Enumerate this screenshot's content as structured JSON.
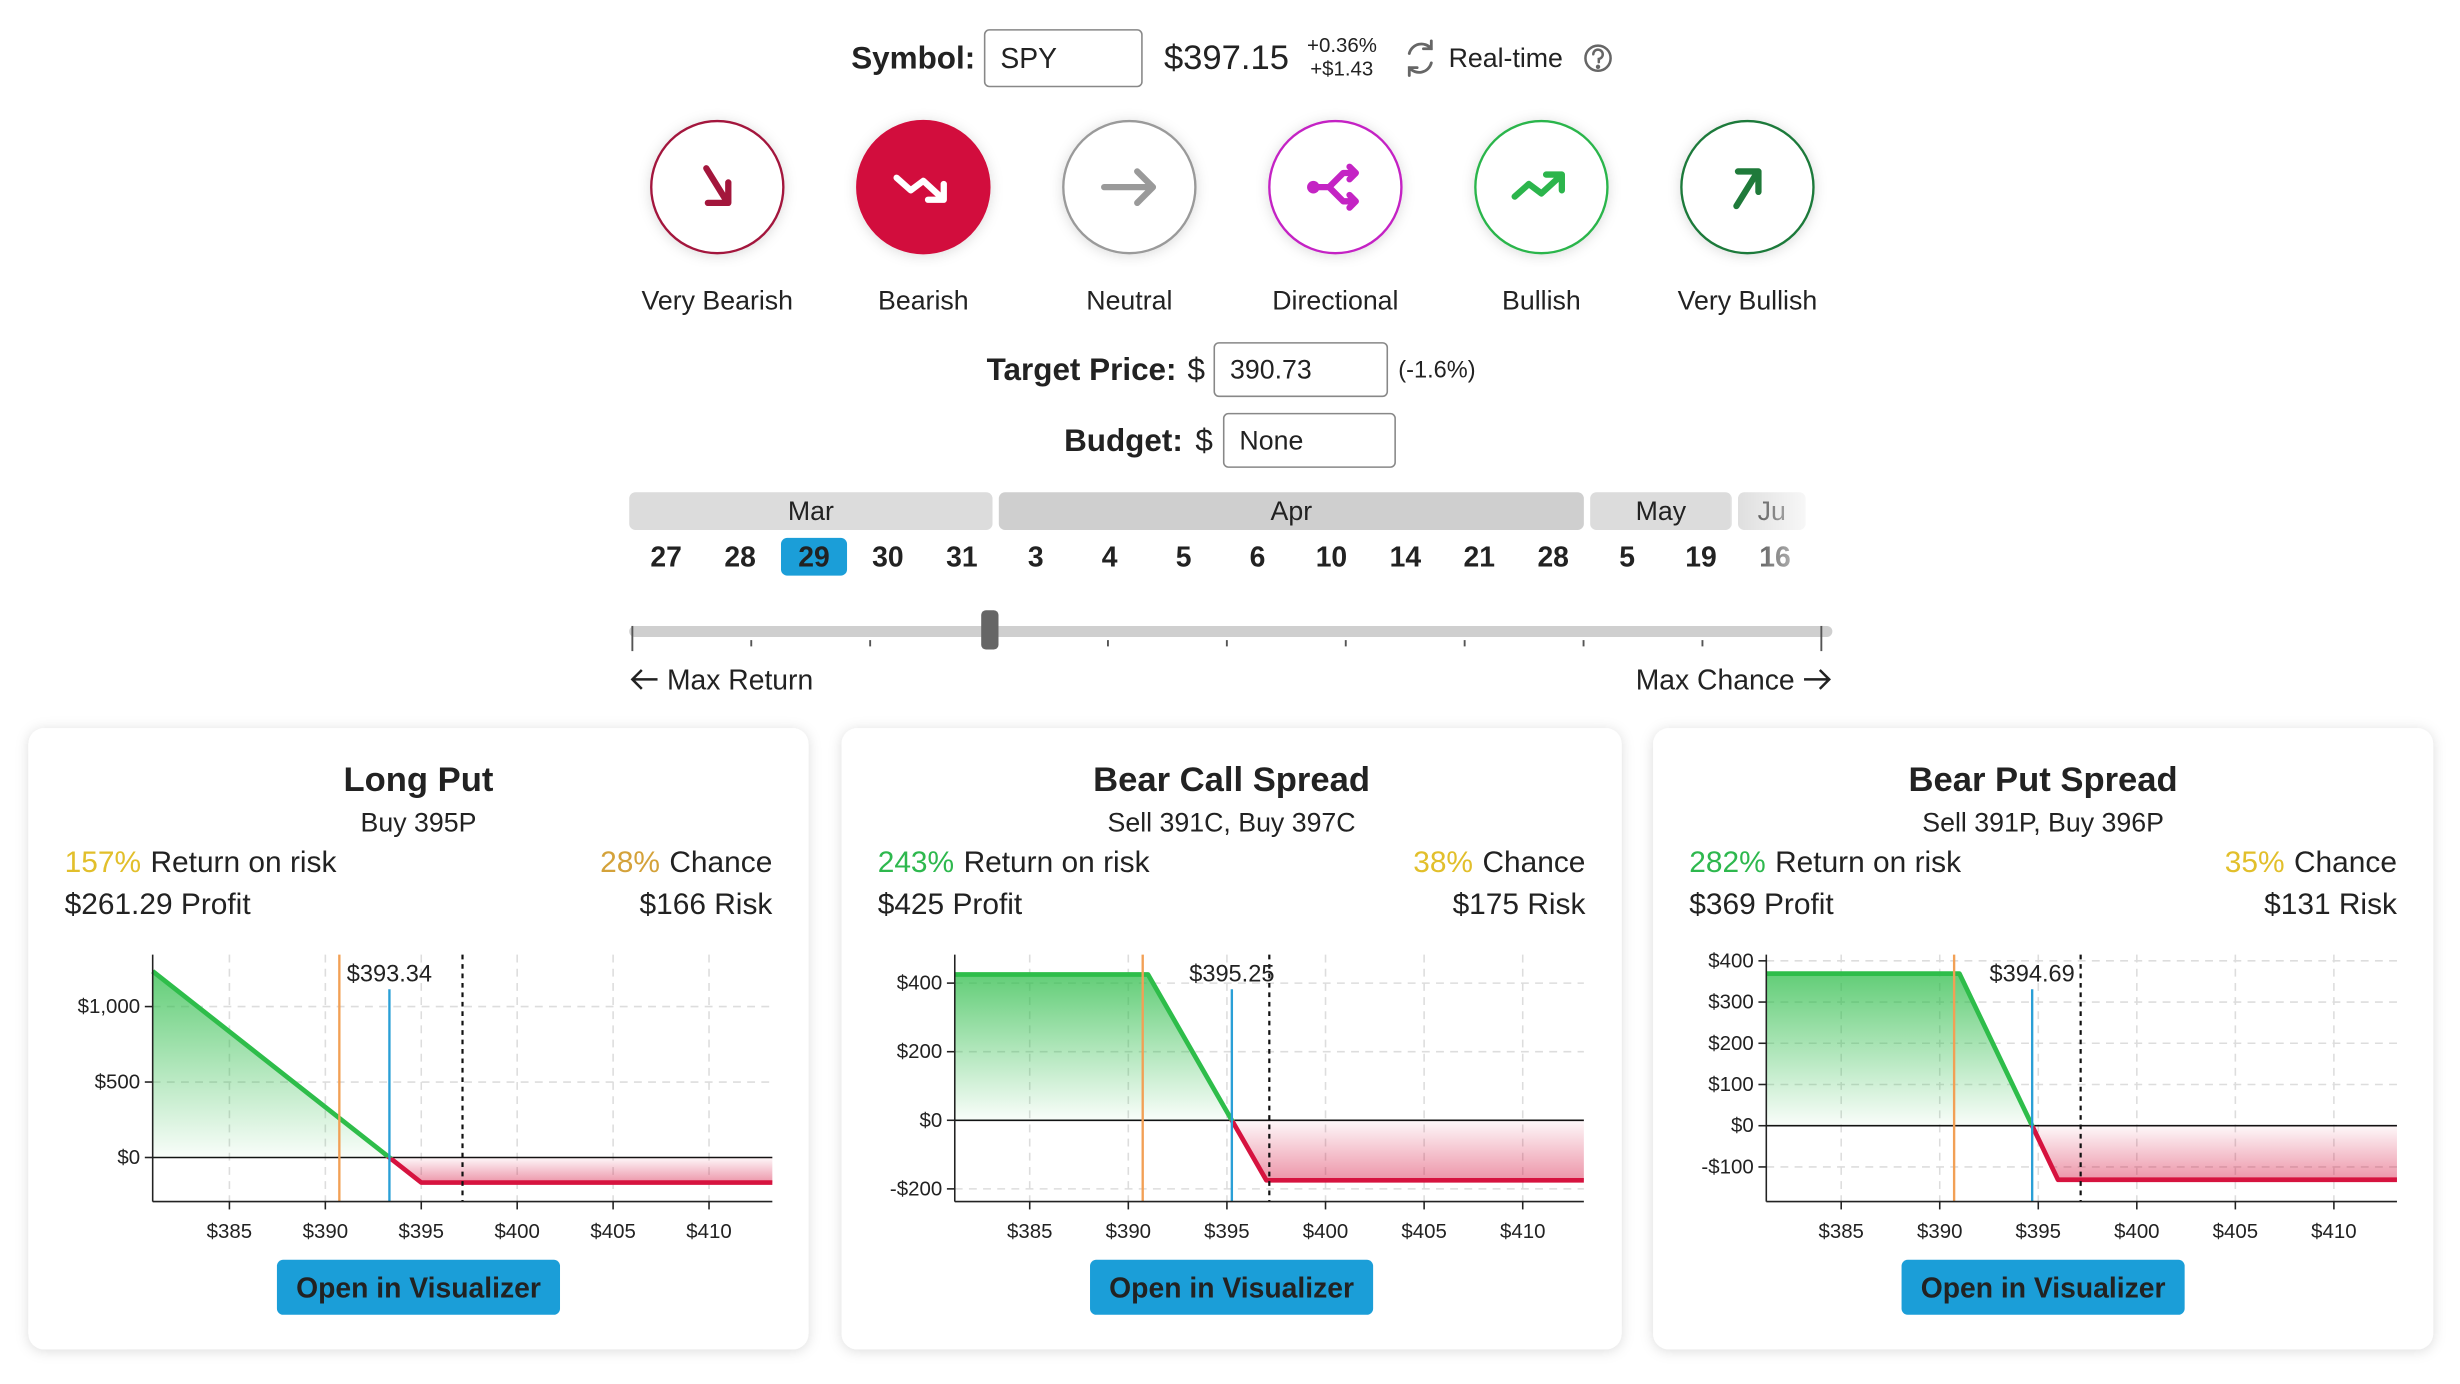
{
  "header": {
    "symbol_label": "Symbol:",
    "symbol": "SPY",
    "price": "$397.15",
    "change_percent": "+0.36%",
    "change_amount": "+$1.43",
    "realtime_label": "Real-time"
  },
  "sentiments": [
    {
      "label": "Very Bearish",
      "color": "#a3163c"
    },
    {
      "label": "Bearish",
      "color": "#d20a3c",
      "selected": true
    },
    {
      "label": "Neutral",
      "color": "#9a9a9a"
    },
    {
      "label": "Directional",
      "color": "#c424c4"
    },
    {
      "label": "Bullish",
      "color": "#2cb54c"
    },
    {
      "label": "Very Bullish",
      "color": "#1f7a3a"
    }
  ],
  "target_price": {
    "label": "Target Price:",
    "currency": "$",
    "value": "390.73",
    "change": "(-1.6%)"
  },
  "budget": {
    "label": "Budget:",
    "currency": "$",
    "placeholder": "None"
  },
  "expirations": {
    "months": [
      {
        "name": "Mar",
        "days": [
          27,
          28,
          29,
          30,
          31
        ],
        "selected_day": 2
      },
      {
        "name": "Apr",
        "days": [
          3,
          4,
          5,
          6,
          10,
          14,
          21,
          28
        ]
      },
      {
        "name": "May",
        "days": [
          5,
          19
        ]
      },
      {
        "name": "Ju",
        "days": [
          16
        ]
      }
    ]
  },
  "slider": {
    "min_label": "Max Return",
    "max_label": "Max Chance",
    "steps": 10,
    "position": 3
  },
  "cards": [
    {
      "title": "Long Put",
      "legs": "Buy 395P",
      "return_value": "157%",
      "return_color": "#e2bf2b",
      "return_label": "Return on risk",
      "chance_value": "28%",
      "chance_color": "#d4a23a",
      "chance_label": "Chance",
      "profit": "$261.29 Profit",
      "risk": "$166 Risk",
      "button": "Open in Visualizer",
      "chart": {
        "type": "line",
        "x": [
          381,
          393.34,
          395,
          413.3
        ],
        "values": [
          1234,
          0,
          -166,
          -166
        ],
        "xlim": [
          381,
          413.3
        ],
        "ylim": [
          -292,
          1344
        ],
        "xticks": [
          {
            "value": 385,
            "label": "$385"
          },
          {
            "value": 390,
            "label": "$390"
          },
          {
            "value": 395,
            "label": "$395"
          },
          {
            "value": 400,
            "label": "$400"
          },
          {
            "value": 405,
            "label": "$405"
          },
          {
            "value": 410,
            "label": "$410"
          }
        ],
        "yticks": [
          {
            "value": 0,
            "label": "$0"
          },
          {
            "value": 500,
            "label": "$500"
          },
          {
            "value": 1000,
            "label": "$1,000"
          }
        ],
        "grid": true,
        "target": 390.73,
        "current": 397.15,
        "breakeven": {
          "value": 393.34,
          "label": "$393.34"
        },
        "profit_color": "#2ebd4a",
        "loss_color": "#d6133f"
      }
    },
    {
      "title": "Bear Call Spread",
      "legs": "Sell 391C, Buy 397C",
      "return_value": "243%",
      "return_color": "#2eb84e",
      "return_label": "Return on risk",
      "chance_value": "38%",
      "chance_color": "#e2bf2b",
      "chance_label": "Chance",
      "profit": "$425 Profit",
      "risk": "$175 Risk",
      "button": "Open in Visualizer",
      "chart": {
        "type": "line",
        "x": [
          381.2,
          391,
          395.25,
          397,
          413.1
        ],
        "values": [
          425,
          425,
          0,
          -175,
          -175
        ],
        "xlim": [
          381.2,
          413.1
        ],
        "ylim": [
          -237,
          483
        ],
        "xticks": [
          {
            "value": 385,
            "label": "$385"
          },
          {
            "value": 390,
            "label": "$390"
          },
          {
            "value": 395,
            "label": "$395"
          },
          {
            "value": 400,
            "label": "$400"
          },
          {
            "value": 405,
            "label": "$405"
          },
          {
            "value": 410,
            "label": "$410"
          }
        ],
        "yticks": [
          {
            "value": -200,
            "label": "-$200"
          },
          {
            "value": 0,
            "label": "$0"
          },
          {
            "value": 200,
            "label": "$200"
          },
          {
            "value": 400,
            "label": "$400"
          }
        ],
        "grid": true,
        "target": 390.73,
        "current": 397.15,
        "breakeven": {
          "value": 395.25,
          "label": "$395.25"
        },
        "profit_color": "#2ebd4a",
        "loss_color": "#d6133f"
      }
    },
    {
      "title": "Bear Put Spread",
      "legs": "Sell 391P, Buy 396P",
      "return_value": "282%",
      "return_color": "#2eb84e",
      "return_label": "Return on risk",
      "chance_value": "35%",
      "chance_color": "#e2bf2b",
      "chance_label": "Chance",
      "profit": "$369 Profit",
      "risk": "$131 Risk",
      "button": "Open in Visualizer",
      "chart": {
        "type": "line",
        "x": [
          381.2,
          391,
          394.69,
          396,
          413.2
        ],
        "values": [
          369,
          369,
          0,
          -131,
          -131
        ],
        "xlim": [
          381.2,
          413.2
        ],
        "ylim": [
          -184,
          415
        ],
        "xticks": [
          {
            "value": 385,
            "label": "$385"
          },
          {
            "value": 390,
            "label": "$390"
          },
          {
            "value": 395,
            "label": "$395"
          },
          {
            "value": 400,
            "label": "$400"
          },
          {
            "value": 405,
            "label": "$405"
          },
          {
            "value": 410,
            "label": "$410"
          }
        ],
        "yticks": [
          {
            "value": -100,
            "label": "-$100"
          },
          {
            "value": 0,
            "label": "$0"
          },
          {
            "value": 100,
            "label": "$100"
          },
          {
            "value": 200,
            "label": "$200"
          },
          {
            "value": 300,
            "label": "$300"
          },
          {
            "value": 400,
            "label": "$400"
          }
        ],
        "grid": true,
        "target": 390.73,
        "current": 397.15,
        "breakeven": {
          "value": 394.69,
          "label": "$394.69"
        },
        "profit_color": "#2ebd4a",
        "loss_color": "#d6133f"
      }
    }
  ]
}
